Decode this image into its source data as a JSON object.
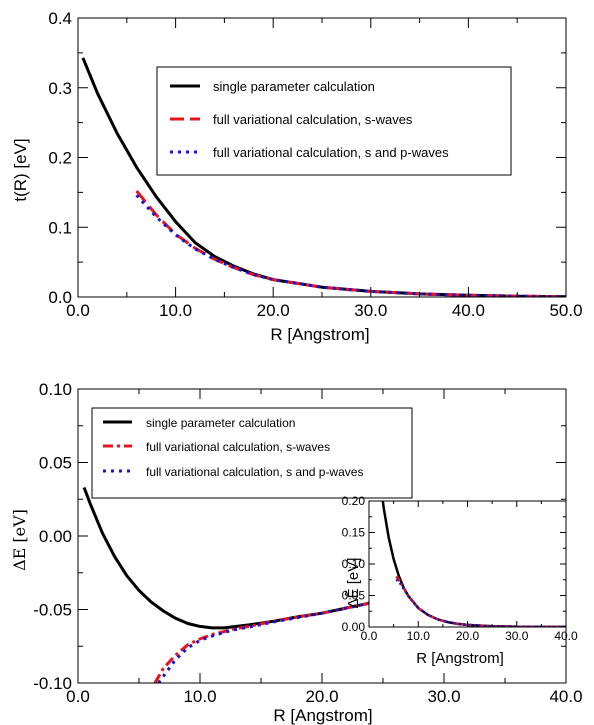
{
  "chart_data": [
    {
      "type": "line",
      "title": "",
      "xlabel": "R [Angstrom]",
      "ylabel": "t(R)  [eV]",
      "xlim": [
        0,
        50
      ],
      "ylim": [
        0,
        0.4
      ],
      "x_ticks": [
        "0.0",
        "10.0",
        "20.0",
        "30.0",
        "40.0",
        "50.0"
      ],
      "y_ticks": [
        "0.0",
        "0.1",
        "0.2",
        "0.3",
        "0.4"
      ],
      "legend_position": "top-right",
      "series": [
        {
          "name": "single parameter calculation",
          "color": "#000000",
          "style": "solid",
          "x": [
            0.5,
            2,
            4,
            6,
            8,
            10,
            12,
            14,
            16,
            18,
            20,
            25,
            30,
            35,
            40,
            45,
            50
          ],
          "y": [
            0.343,
            0.292,
            0.235,
            0.186,
            0.144,
            0.108,
            0.078,
            0.058,
            0.044,
            0.033,
            0.025,
            0.014,
            0.008,
            0.0045,
            0.0025,
            0.0012,
            0.0005
          ]
        },
        {
          "name": "full variational calculation, s-waves",
          "color": "#e8141c",
          "style": "dashed",
          "x": [
            6,
            8,
            10,
            12,
            14,
            16,
            18,
            20,
            25,
            30,
            35,
            40,
            45,
            50
          ],
          "y": [
            0.152,
            0.118,
            0.09,
            0.07,
            0.054,
            0.042,
            0.032,
            0.025,
            0.014,
            0.008,
            0.0045,
            0.0025,
            0.0012,
            0.0005
          ]
        },
        {
          "name": "full variational calculation, s and p-waves",
          "color": "#1414d8",
          "style": "dotted",
          "x": [
            6,
            8,
            10,
            12,
            14,
            16,
            18,
            20,
            25,
            30,
            35,
            40,
            45,
            50
          ],
          "y": [
            0.146,
            0.115,
            0.089,
            0.069,
            0.054,
            0.042,
            0.032,
            0.025,
            0.014,
            0.008,
            0.0045,
            0.0025,
            0.0012,
            0.0005
          ]
        }
      ]
    },
    {
      "type": "line",
      "title": "",
      "xlabel": "R [Angstrom]",
      "ylabel": "ΔE [eV]",
      "xlim": [
        0,
        40
      ],
      "ylim": [
        -0.1,
        0.1
      ],
      "x_ticks": [
        "0.0",
        "10.0",
        "20.0",
        "30.0",
        "40.0"
      ],
      "y_ticks": [
        "-0.10",
        "-0.05",
        "0.00",
        "0.05",
        "0.10"
      ],
      "legend_position": "top-left",
      "series": [
        {
          "name": "single parameter calculation",
          "color": "#000000",
          "style": "solid",
          "x": [
            0.5,
            1,
            2,
            3,
            4,
            5,
            6,
            7,
            8,
            9,
            10,
            11,
            12,
            14,
            16,
            18,
            20,
            22,
            24,
            26,
            28,
            30,
            32,
            34,
            36,
            38,
            40
          ],
          "y": [
            0.033,
            0.022,
            0.002,
            -0.014,
            -0.027,
            -0.037,
            -0.045,
            -0.051,
            -0.056,
            -0.0595,
            -0.0615,
            -0.0625,
            -0.0625,
            -0.0605,
            -0.058,
            -0.055,
            -0.0525,
            -0.049,
            -0.0455,
            -0.042,
            -0.038,
            -0.0345,
            -0.031,
            -0.0275,
            -0.024,
            -0.0205,
            -0.017
          ]
        },
        {
          "name": "full variational calculation, s-waves",
          "color": "#e8141c",
          "style": "dashdot",
          "x": [
            6.3,
            7,
            8,
            9,
            10,
            11,
            12,
            13,
            14,
            16,
            18,
            20,
            22,
            24,
            26,
            28,
            30,
            32,
            34,
            36,
            38,
            40
          ],
          "y": [
            -0.1,
            -0.09,
            -0.081,
            -0.074,
            -0.07,
            -0.067,
            -0.065,
            -0.063,
            -0.0615,
            -0.058,
            -0.055,
            -0.0525,
            -0.049,
            -0.0455,
            -0.042,
            -0.038,
            -0.0345,
            -0.031,
            -0.0275,
            -0.024,
            -0.0205,
            -0.017
          ]
        },
        {
          "name": "full variational calculation, s and p-waves",
          "color": "#1414d8",
          "style": "dotted",
          "x": [
            6.6,
            7.3,
            8,
            9,
            10,
            11,
            12,
            13,
            14,
            16,
            18,
            20,
            22,
            24,
            26,
            28,
            30,
            32,
            34,
            36,
            38,
            40
          ],
          "y": [
            -0.1,
            -0.092,
            -0.084,
            -0.076,
            -0.071,
            -0.068,
            -0.0655,
            -0.0635,
            -0.062,
            -0.0585,
            -0.0555,
            -0.0525,
            -0.049,
            -0.0455,
            -0.042,
            -0.038,
            -0.0345,
            -0.031,
            -0.0275,
            -0.024,
            -0.0205,
            -0.017
          ]
        }
      ]
    },
    {
      "type": "line",
      "title": "",
      "xlabel": "R [Angstrom]",
      "ylabel": "ΔẼ [eV]",
      "xlim": [
        0,
        40
      ],
      "ylim": [
        0,
        0.2
      ],
      "x_ticks": [
        "0.0",
        "10.0",
        "20.0",
        "30.0",
        "40.0"
      ],
      "y_ticks": [
        "0.00",
        "0.05",
        "0.10",
        "0.15",
        "0.20"
      ],
      "series": [
        {
          "name": "single parameter calculation",
          "color": "#000000",
          "style": "solid",
          "x": [
            2.8,
            3,
            4,
            5,
            6,
            7,
            8,
            10,
            12,
            14,
            16,
            18,
            20,
            25,
            30,
            35,
            40
          ],
          "y": [
            0.2,
            0.188,
            0.142,
            0.108,
            0.082,
            0.063,
            0.049,
            0.03,
            0.019,
            0.012,
            0.0078,
            0.005,
            0.0033,
            0.0012,
            0.0005,
            0.0002,
            0.0001
          ],
          "legend": false
        },
        {
          "name": "full variational calculation, s-waves",
          "color": "#e8141c",
          "style": "dashdot",
          "x": [
            5.5,
            6,
            7,
            8,
            10,
            12,
            14,
            16,
            18,
            20,
            25,
            30,
            35,
            40
          ],
          "y": [
            0.08,
            0.076,
            0.062,
            0.049,
            0.03,
            0.019,
            0.012,
            0.0078,
            0.005,
            0.0033,
            0.0012,
            0.0005,
            0.0002,
            0.0001
          ]
        },
        {
          "name": "full variational calculation, s and p-waves",
          "color": "#1414d8",
          "style": "dotted",
          "x": [
            5.5,
            6,
            7,
            8,
            10,
            12,
            14,
            16,
            18,
            20,
            25,
            30,
            35,
            40
          ],
          "y": [
            0.075,
            0.073,
            0.061,
            0.049,
            0.03,
            0.019,
            0.012,
            0.0078,
            0.005,
            0.0033,
            0.0012,
            0.0005,
            0.0002,
            0.0001
          ]
        }
      ]
    }
  ]
}
